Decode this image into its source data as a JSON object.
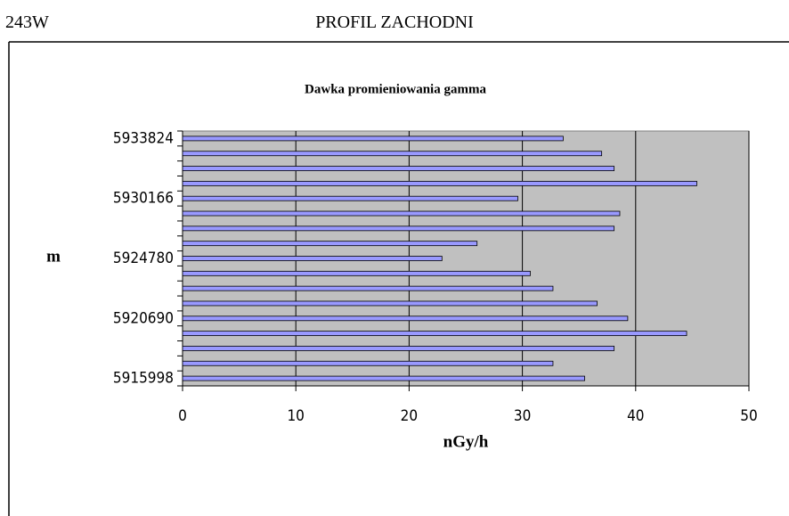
{
  "header": {
    "code": "243W",
    "title": "PROFIL ZACHODNI"
  },
  "chart_data": {
    "type": "bar",
    "orientation": "horizontal",
    "title": "Dawka promieniowania gamma",
    "y_label": "m",
    "x_label": "nGy/h",
    "categories": [
      "5933824",
      null,
      null,
      null,
      "5930166",
      null,
      null,
      null,
      "5924780",
      null,
      null,
      null,
      "5920690",
      null,
      null,
      null,
      "5915998"
    ],
    "values": [
      33.6,
      37.0,
      38.1,
      45.4,
      29.6,
      38.6,
      38.1,
      26.0,
      22.9,
      30.7,
      32.7,
      36.6,
      39.3,
      44.5,
      38.1,
      32.7,
      35.5
    ],
    "color": "#9999ff",
    "xlim": [
      0,
      50
    ],
    "xticks": [
      0,
      10,
      20,
      30,
      40,
      50
    ],
    "grid": true
  }
}
